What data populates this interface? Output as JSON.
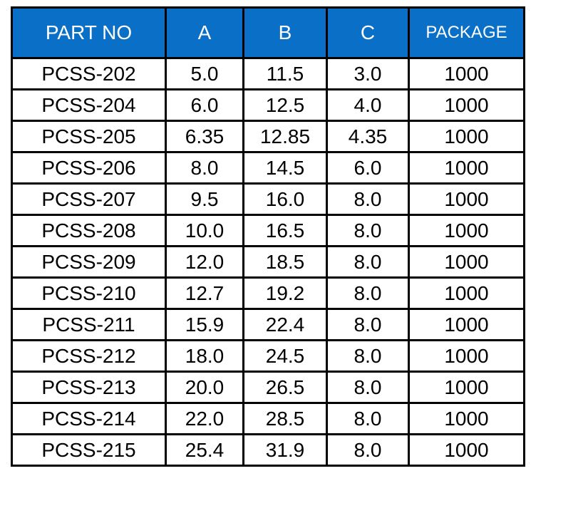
{
  "colors": {
    "header_background": "#0a6fc6",
    "header_text": "#ffffff",
    "border": "#000000",
    "cell_text": "#000000"
  },
  "table": {
    "headers": [
      "PART NO",
      "A",
      "B",
      "C",
      "PACKAGE"
    ],
    "rows": [
      [
        "PCSS-202",
        "5.0",
        "11.5",
        "3.0",
        "1000"
      ],
      [
        "PCSS-204",
        "6.0",
        "12.5",
        "4.0",
        "1000"
      ],
      [
        "PCSS-205",
        "6.35",
        "12.85",
        "4.35",
        "1000"
      ],
      [
        "PCSS-206",
        "8.0",
        "14.5",
        "6.0",
        "1000"
      ],
      [
        "PCSS-207",
        "9.5",
        "16.0",
        "8.0",
        "1000"
      ],
      [
        "PCSS-208",
        "10.0",
        "16.5",
        "8.0",
        "1000"
      ],
      [
        "PCSS-209",
        "12.0",
        "18.5",
        "8.0",
        "1000"
      ],
      [
        "PCSS-210",
        "12.7",
        "19.2",
        "8.0",
        "1000"
      ],
      [
        "PCSS-211",
        "15.9",
        "22.4",
        "8.0",
        "1000"
      ],
      [
        "PCSS-212",
        "18.0",
        "24.5",
        "8.0",
        "1000"
      ],
      [
        "PCSS-213",
        "20.0",
        "26.5",
        "8.0",
        "1000"
      ],
      [
        "PCSS-214",
        "22.0",
        "28.5",
        "8.0",
        "1000"
      ],
      [
        "PCSS-215",
        "25.4",
        "31.9",
        "8.0",
        "1000"
      ]
    ]
  }
}
